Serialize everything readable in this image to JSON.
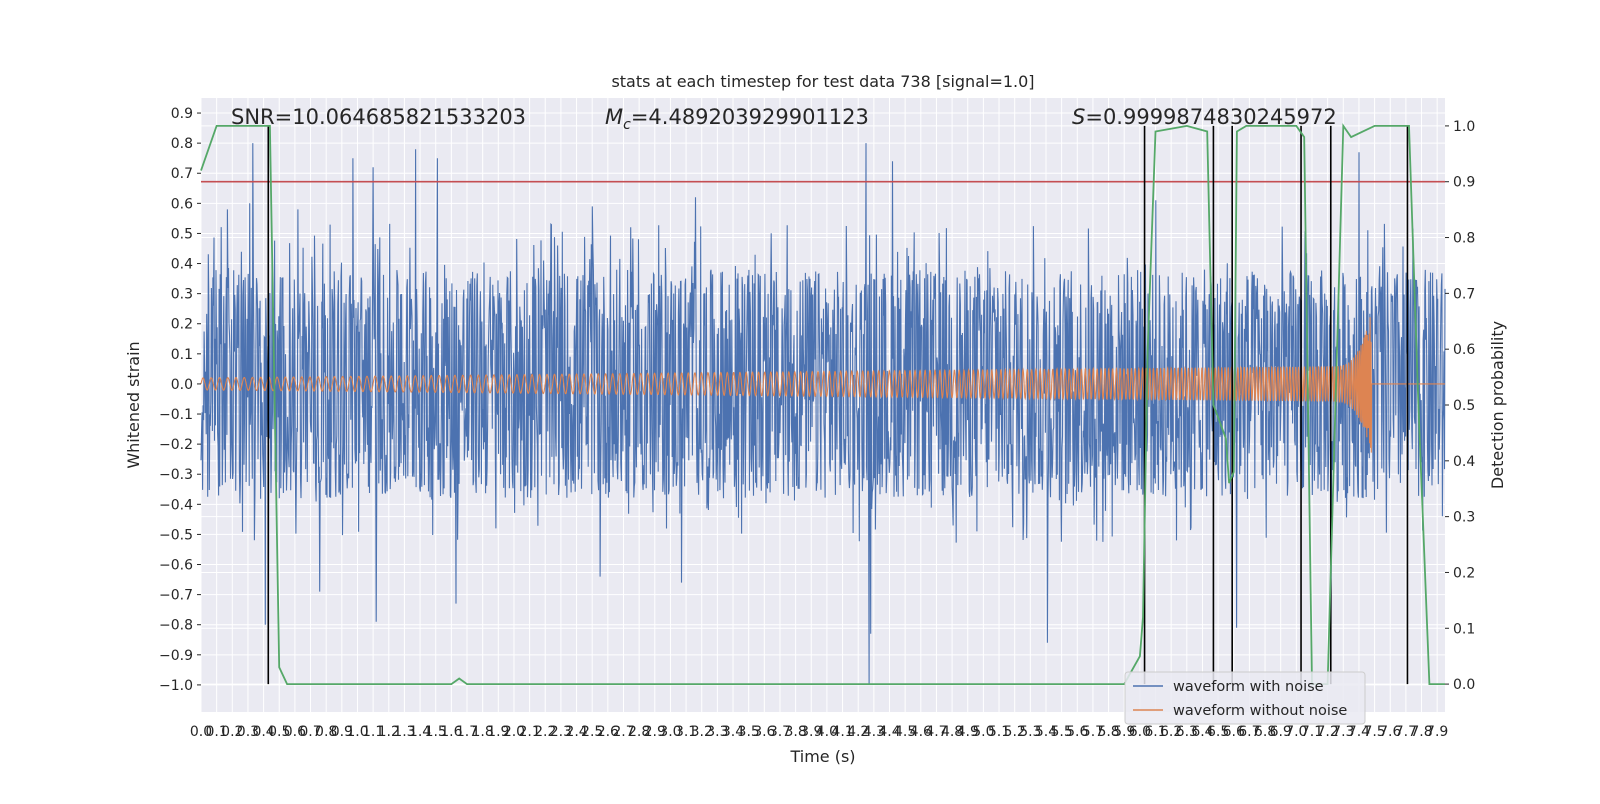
{
  "chart_data": {
    "type": "line",
    "title": "stats at each timestep for test data 738 [signal=1.0]",
    "xlabel": "Time (s)",
    "ylabel_left": "Whitened strain",
    "ylabel_right": "Detection probability",
    "xlim": [
      0.0,
      7.95
    ],
    "ylim_left": [
      -1.09,
      0.95
    ],
    "ylim_right": [
      -0.05,
      1.05
    ],
    "grid": true,
    "x_ticks": [
      "0.0",
      "0.1",
      "0.2",
      "0.3",
      "0.4",
      "0.5",
      "0.6",
      "0.7",
      "0.8",
      "0.9",
      "1.0",
      "1.1",
      "1.2",
      "1.3",
      "1.4",
      "1.5",
      "1.6",
      "1.7",
      "1.8",
      "1.9",
      "2.0",
      "2.1",
      "2.2",
      "2.3",
      "2.4",
      "2.5",
      "2.6",
      "2.7",
      "2.8",
      "2.9",
      "3.0",
      "3.1",
      "3.2",
      "3.3",
      "3.4",
      "3.5",
      "3.6",
      "3.7",
      "3.8",
      "3.9",
      "4.0",
      "4.1",
      "4.2",
      "4.3",
      "4.4",
      "4.5",
      "4.6",
      "4.7",
      "4.8",
      "4.9",
      "5.0",
      "5.1",
      "5.2",
      "5.3",
      "5.4",
      "5.5",
      "5.6",
      "5.7",
      "5.8",
      "5.9",
      "6.0",
      "6.1",
      "6.2",
      "6.3",
      "6.4",
      "6.5",
      "6.6",
      "6.7",
      "6.8",
      "6.9",
      "7.0",
      "7.1",
      "7.2",
      "7.3",
      "7.4",
      "7.5",
      "7.6",
      "7.7",
      "7.8",
      "7.9"
    ],
    "y_ticks_left": [
      "−1.0",
      "−0.9",
      "−0.8",
      "−0.7",
      "−0.6",
      "−0.5",
      "−0.4",
      "−0.3",
      "−0.2",
      "−0.1",
      "0.0",
      "0.1",
      "0.2",
      "0.3",
      "0.4",
      "0.5",
      "0.6",
      "0.7",
      "0.8",
      "0.9"
    ],
    "y_ticks_right": [
      "0.0",
      "0.1",
      "0.2",
      "0.3",
      "0.4",
      "0.5",
      "0.6",
      "0.7",
      "0.8",
      "0.9",
      "1.0"
    ],
    "threshold_line": {
      "axis": "right",
      "value": 0.9,
      "color": "#c44e52"
    },
    "annotations": {
      "snr": "SNR=10.064685821533203",
      "mc_symbol": "M",
      "mc_subscript": "c",
      "mc_value": "=4.489203929901123",
      "s_symbol": "S",
      "s_value": "=0.9999874830245972"
    },
    "series": [
      {
        "name": "waveform with noise",
        "color": "#4c72b0",
        "axis": "left",
        "kind": "noise",
        "band": [
          -0.5,
          0.5
        ],
        "peaks": [
          [
            0.08,
            0.26
          ],
          [
            0.17,
            0.58
          ],
          [
            0.31,
            0.6
          ],
          [
            0.33,
            0.8
          ],
          [
            0.41,
            -0.8
          ],
          [
            0.43,
            -0.8
          ],
          [
            0.62,
            0.58
          ],
          [
            0.76,
            -0.69
          ],
          [
            0.97,
            0.75
          ],
          [
            1.1,
            0.72
          ],
          [
            1.12,
            -0.79
          ],
          [
            1.37,
            0.78
          ],
          [
            1.51,
            0.75
          ],
          [
            1.63,
            -0.73
          ],
          [
            2.5,
            0.59
          ],
          [
            2.55,
            -0.64
          ],
          [
            3.07,
            -0.66
          ],
          [
            3.16,
            0.62
          ],
          [
            4.25,
            0.8
          ],
          [
            4.27,
            -1.0
          ],
          [
            4.28,
            -0.83
          ],
          [
            4.42,
            0.74
          ],
          [
            5.41,
            -0.86
          ],
          [
            6.1,
            0.61
          ],
          [
            6.62,
            -0.81
          ],
          [
            7.22,
            -0.8
          ],
          [
            7.4,
            0.77
          ]
        ]
      },
      {
        "name": "waveform without noise",
        "color": "#dd8452",
        "axis": "left",
        "kind": "chirp",
        "amplitude_start": 0.02,
        "amplitude_peak": 0.24,
        "merger_time": 7.48
      },
      {
        "name": "detection probability",
        "color": "#55a868",
        "axis": "right",
        "x": [
          0.0,
          0.1,
          0.15,
          0.4,
          0.44,
          0.5,
          0.55,
          0.6,
          1.5,
          1.6,
          1.65,
          1.7,
          1.75,
          1.8,
          4.3,
          4.35,
          4.4,
          5.9,
          6.0,
          6.02,
          6.05,
          6.1,
          6.3,
          6.43,
          6.47,
          6.55,
          6.57,
          6.6,
          6.62,
          6.68,
          7.0,
          7.05,
          7.1,
          7.15,
          7.2,
          7.3,
          7.35,
          7.5,
          7.72,
          7.78,
          7.85,
          7.92,
          7.95
        ],
        "y": [
          0.92,
          1.0,
          1.0,
          1.0,
          1.0,
          0.03,
          0.0,
          0.0,
          0.0,
          0.0,
          0.01,
          0.0,
          0.0,
          0.0,
          0.0,
          0.0,
          0.0,
          0.0,
          0.05,
          0.12,
          0.6,
          0.99,
          1.0,
          0.99,
          0.5,
          0.44,
          0.36,
          0.38,
          0.99,
          1.0,
          1.0,
          0.98,
          0.0,
          0.0,
          0.0,
          1.0,
          0.98,
          1.0,
          1.0,
          0.5,
          0.0,
          0.0,
          0.0
        ]
      }
    ],
    "vertical_lines": [
      0.43,
      6.03,
      6.47,
      6.59,
      7.03,
      7.22,
      7.71
    ],
    "legend": [
      "waveform with noise",
      "waveform without noise"
    ],
    "legend_position": "lower right"
  }
}
